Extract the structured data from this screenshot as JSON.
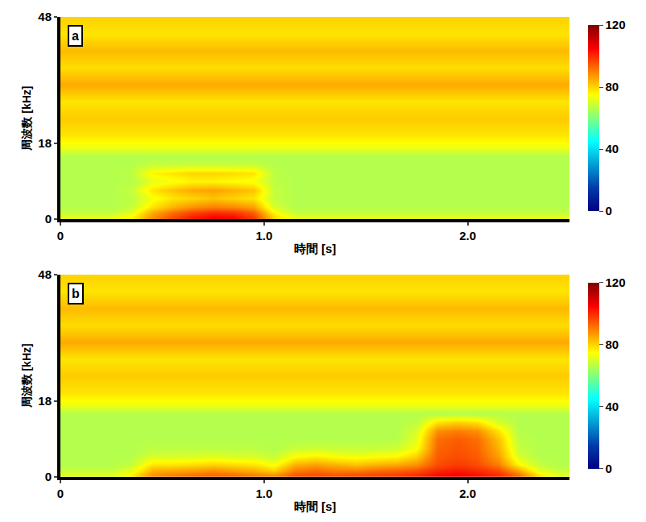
{
  "chart_data": [
    {
      "type": "heatmap",
      "annotation": "a",
      "xlabel": "時間 [s]",
      "ylabel": "周波数 [kHz]",
      "color": "Jet",
      "xlim": [
        0,
        2.5
      ],
      "xticks": [
        0,
        {
          "value": 1,
          "label": "1.0"
        },
        {
          "value": 2,
          "label": "2.0"
        }
      ],
      "ylim": [
        0,
        48
      ],
      "yticks": [
        0,
        18,
        48
      ],
      "colorbar": {
        "range": [
          0,
          120
        ],
        "ticks": [
          0,
          40,
          80,
          120
        ]
      },
      "x": [
        0.05,
        0.15,
        0.25,
        0.35,
        0.45,
        0.55,
        0.65,
        0.75,
        0.85,
        0.95,
        1.05,
        1.15,
        1.25,
        1.35,
        1.45,
        1.55,
        1.65,
        1.75,
        1.85,
        1.95,
        2.05,
        2.15,
        2.25,
        2.35,
        2.45
      ],
      "y": [
        0.5,
        1.5,
        3,
        5,
        7,
        9,
        11,
        13,
        15,
        17,
        20,
        24,
        28,
        32,
        36,
        40,
        44,
        47
      ],
      "z": [
        [
          72,
          72,
          72,
          76,
          88,
          96,
          102,
          105,
          104,
          98,
          80,
          72,
          72,
          72,
          72,
          72,
          72,
          72,
          72,
          72,
          72,
          72,
          72,
          72,
          72
        ],
        [
          68,
          68,
          68,
          72,
          85,
          92,
          97,
          100,
          99,
          94,
          76,
          68,
          68,
          68,
          68,
          68,
          68,
          68,
          68,
          68,
          68,
          68,
          68,
          68,
          68
        ],
        [
          66,
          66,
          66,
          68,
          78,
          84,
          88,
          90,
          89,
          86,
          70,
          66,
          66,
          66,
          66,
          66,
          66,
          66,
          66,
          66,
          66,
          66,
          66,
          66,
          66
        ],
        [
          66,
          66,
          66,
          67,
          74,
          78,
          80,
          82,
          80,
          78,
          68,
          66,
          66,
          66,
          66,
          66,
          66,
          66,
          66,
          66,
          66,
          66,
          66,
          66,
          66
        ],
        [
          66,
          66,
          66,
          68,
          78,
          82,
          85,
          86,
          84,
          82,
          68,
          66,
          66,
          66,
          66,
          66,
          66,
          66,
          66,
          66,
          66,
          66,
          66,
          66,
          66
        ],
        [
          66,
          66,
          66,
          66,
          72,
          74,
          76,
          76,
          75,
          74,
          67,
          66,
          66,
          66,
          66,
          66,
          66,
          66,
          66,
          66,
          66,
          66,
          66,
          66,
          66
        ],
        [
          66,
          66,
          66,
          67,
          76,
          78,
          80,
          80,
          79,
          78,
          67,
          66,
          66,
          66,
          66,
          66,
          66,
          66,
          66,
          66,
          66,
          66,
          66,
          66,
          66
        ],
        [
          66,
          66,
          66,
          66,
          68,
          68,
          68,
          68,
          68,
          68,
          66,
          66,
          66,
          66,
          66,
          66,
          66,
          66,
          66,
          66,
          66,
          66,
          66,
          66,
          66
        ],
        [
          66,
          66,
          66,
          66,
          66,
          66,
          66,
          66,
          66,
          66,
          66,
          66,
          66,
          66,
          66,
          66,
          66,
          66,
          66,
          66,
          66,
          66,
          66,
          66,
          66
        ],
        [
          73,
          73,
          73,
          73,
          73,
          73,
          73,
          73,
          73,
          73,
          73,
          73,
          73,
          73,
          73,
          73,
          73,
          73,
          73,
          73,
          73,
          73,
          73,
          73,
          73
        ],
        [
          78,
          78,
          78,
          78,
          78,
          78,
          78,
          78,
          78,
          78,
          78,
          78,
          78,
          78,
          78,
          78,
          78,
          78,
          78,
          78,
          78,
          78,
          78,
          78,
          78
        ],
        [
          81,
          81,
          81,
          81,
          81,
          81,
          81,
          81,
          81,
          81,
          81,
          81,
          81,
          81,
          81,
          81,
          81,
          81,
          81,
          81,
          81,
          81,
          81,
          81,
          81
        ],
        [
          78,
          78,
          78,
          78,
          78,
          78,
          78,
          78,
          78,
          78,
          78,
          78,
          78,
          78,
          78,
          78,
          78,
          78,
          78,
          78,
          78,
          78,
          78,
          78,
          78
        ],
        [
          85,
          85,
          85,
          85,
          85,
          85,
          85,
          85,
          85,
          85,
          85,
          85,
          85,
          85,
          85,
          85,
          85,
          85,
          85,
          85,
          85,
          85,
          85,
          85,
          85
        ],
        [
          79,
          79,
          79,
          79,
          79,
          79,
          79,
          79,
          79,
          79,
          79,
          79,
          79,
          79,
          79,
          79,
          79,
          79,
          79,
          79,
          79,
          79,
          79,
          79,
          79
        ],
        [
          83,
          83,
          83,
          83,
          83,
          83,
          83,
          83,
          83,
          83,
          83,
          83,
          83,
          83,
          83,
          83,
          83,
          83,
          83,
          83,
          83,
          83,
          83,
          83,
          83
        ],
        [
          78,
          78,
          78,
          78,
          78,
          78,
          78,
          78,
          78,
          78,
          78,
          78,
          78,
          78,
          78,
          78,
          78,
          78,
          78,
          78,
          78,
          78,
          78,
          78,
          78
        ],
        [
          80,
          80,
          80,
          80,
          80,
          80,
          80,
          80,
          80,
          80,
          80,
          80,
          80,
          80,
          80,
          80,
          80,
          80,
          80,
          80,
          80,
          80,
          80,
          80,
          80
        ]
      ]
    },
    {
      "type": "heatmap",
      "annotation": "b",
      "xlabel": "時間 [s]",
      "ylabel": "周波数 [kHz]",
      "color": "Jet",
      "xlim": [
        0,
        2.5
      ],
      "xticks": [
        0,
        {
          "value": 1,
          "label": "1.0"
        },
        {
          "value": 2,
          "label": "2.0"
        }
      ],
      "ylim": [
        0,
        48
      ],
      "yticks": [
        0,
        18,
        48
      ],
      "colorbar": {
        "range": [
          0,
          120
        ],
        "ticks": [
          0,
          40,
          80,
          120
        ]
      },
      "x": [
        0.05,
        0.15,
        0.25,
        0.35,
        0.45,
        0.55,
        0.65,
        0.75,
        0.85,
        0.95,
        1.05,
        1.15,
        1.25,
        1.35,
        1.45,
        1.55,
        1.65,
        1.75,
        1.85,
        1.95,
        2.05,
        2.15,
        2.25,
        2.35,
        2.45
      ],
      "y": [
        0.5,
        1.5,
        3,
        5,
        7,
        9,
        11,
        13,
        15,
        17,
        20,
        24,
        28,
        32,
        36,
        40,
        44,
        47
      ],
      "z": [
        [
          72,
          72,
          72,
          76,
          88,
          90,
          92,
          93,
          92,
          90,
          88,
          95,
          96,
          95,
          96,
          97,
          98,
          100,
          104,
          105,
          103,
          100,
          92,
          78,
          72
        ],
        [
          68,
          68,
          68,
          72,
          84,
          85,
          86,
          88,
          86,
          84,
          80,
          90,
          92,
          90,
          90,
          92,
          93,
          95,
          100,
          102,
          100,
          96,
          85,
          72,
          68
        ],
        [
          66,
          66,
          66,
          68,
          78,
          78,
          79,
          80,
          79,
          78,
          74,
          84,
          86,
          84,
          82,
          84,
          85,
          88,
          96,
          98,
          96,
          90,
          76,
          68,
          66
        ],
        [
          66,
          66,
          66,
          66,
          70,
          70,
          70,
          71,
          70,
          70,
          68,
          74,
          76,
          74,
          73,
          74,
          75,
          80,
          94,
          96,
          94,
          86,
          70,
          66,
          66
        ],
        [
          66,
          66,
          66,
          66,
          67,
          67,
          67,
          67,
          67,
          67,
          66,
          68,
          69,
          68,
          68,
          68,
          69,
          74,
          93,
          95,
          93,
          84,
          68,
          66,
          66
        ],
        [
          66,
          66,
          66,
          66,
          66,
          66,
          66,
          66,
          66,
          66,
          66,
          66,
          66,
          66,
          66,
          66,
          66,
          72,
          92,
          94,
          92,
          82,
          67,
          66,
          66
        ],
        [
          66,
          66,
          66,
          66,
          66,
          66,
          66,
          66,
          66,
          66,
          66,
          66,
          66,
          66,
          66,
          66,
          66,
          70,
          88,
          90,
          88,
          78,
          66,
          66,
          66
        ],
        [
          66,
          66,
          66,
          66,
          66,
          66,
          66,
          66,
          66,
          66,
          66,
          66,
          66,
          66,
          66,
          66,
          66,
          67,
          78,
          80,
          78,
          70,
          66,
          66,
          66
        ],
        [
          66,
          66,
          66,
          66,
          66,
          66,
          66,
          66,
          66,
          66,
          66,
          66,
          66,
          66,
          66,
          66,
          66,
          66,
          66,
          66,
          66,
          66,
          66,
          66,
          66
        ],
        [
          73,
          73,
          73,
          73,
          73,
          73,
          73,
          73,
          73,
          73,
          73,
          73,
          73,
          73,
          73,
          73,
          73,
          73,
          73,
          73,
          73,
          73,
          73,
          73,
          73
        ],
        [
          78,
          78,
          78,
          78,
          78,
          78,
          78,
          78,
          78,
          78,
          78,
          78,
          78,
          78,
          78,
          78,
          78,
          78,
          78,
          78,
          78,
          78,
          78,
          78,
          78
        ],
        [
          81,
          81,
          81,
          81,
          81,
          81,
          81,
          81,
          81,
          81,
          81,
          81,
          81,
          81,
          81,
          81,
          81,
          81,
          81,
          81,
          81,
          81,
          81,
          81,
          81
        ],
        [
          78,
          78,
          78,
          78,
          78,
          78,
          78,
          78,
          78,
          78,
          78,
          78,
          78,
          78,
          78,
          78,
          78,
          78,
          78,
          78,
          78,
          78,
          78,
          78,
          78
        ],
        [
          85,
          85,
          85,
          85,
          85,
          85,
          85,
          85,
          85,
          85,
          85,
          85,
          85,
          85,
          85,
          85,
          85,
          85,
          85,
          85,
          85,
          85,
          85,
          85,
          85
        ],
        [
          79,
          79,
          79,
          79,
          79,
          79,
          79,
          79,
          79,
          79,
          79,
          79,
          79,
          79,
          79,
          79,
          79,
          79,
          79,
          79,
          79,
          79,
          79,
          79,
          79
        ],
        [
          83,
          83,
          83,
          83,
          83,
          83,
          83,
          83,
          83,
          83,
          83,
          83,
          83,
          83,
          83,
          83,
          83,
          83,
          83,
          83,
          83,
          83,
          83,
          83,
          83
        ],
        [
          78,
          78,
          78,
          78,
          78,
          78,
          78,
          78,
          78,
          78,
          78,
          78,
          78,
          78,
          78,
          78,
          78,
          78,
          78,
          78,
          78,
          78,
          78,
          78,
          78
        ],
        [
          80,
          80,
          80,
          80,
          80,
          80,
          80,
          80,
          80,
          80,
          80,
          80,
          80,
          80,
          80,
          80,
          80,
          80,
          80,
          80,
          80,
          80,
          80,
          80,
          80
        ]
      ]
    }
  ]
}
